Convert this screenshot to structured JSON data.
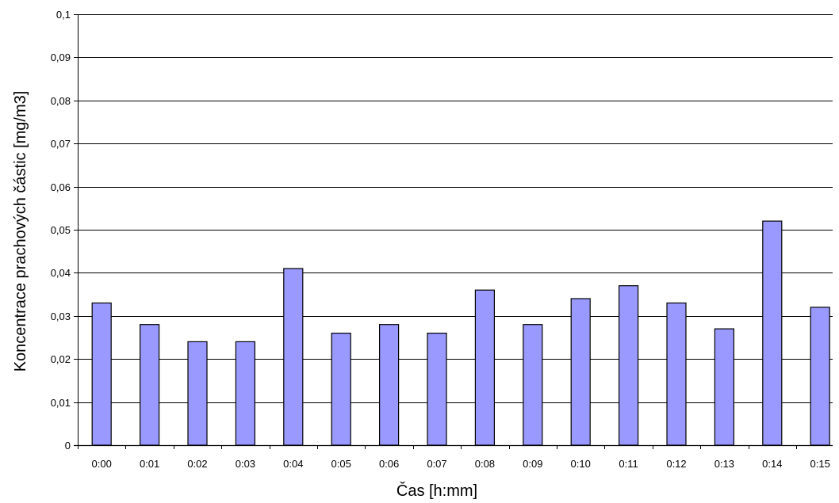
{
  "chart_data": {
    "type": "bar",
    "title": "",
    "xlabel": "Čas [h:mm]",
    "ylabel": "Koncentrace prachových částic [mg/m3]",
    "categories": [
      "0:00",
      "0:01",
      "0:02",
      "0:03",
      "0:04",
      "0:05",
      "0:06",
      "0:07",
      "0:08",
      "0:09",
      "0:10",
      "0:11",
      "0:12",
      "0:13",
      "0:14",
      "0:15"
    ],
    "values": [
      0.033,
      0.028,
      0.024,
      0.024,
      0.041,
      0.026,
      0.028,
      0.026,
      0.036,
      0.028,
      0.034,
      0.037,
      0.033,
      0.027,
      0.052,
      0.032
    ],
    "ylim": [
      0,
      0.1
    ],
    "yticks": [
      0,
      0.01,
      0.02,
      0.03,
      0.04,
      0.05,
      0.06,
      0.07,
      0.08,
      0.09,
      0.1
    ],
    "ytick_labels": [
      "0",
      "0,01",
      "0,02",
      "0,03",
      "0,04",
      "0,05",
      "0,06",
      "0,07",
      "0,08",
      "0,09",
      "0,1"
    ],
    "grid": true,
    "legend": "none",
    "colors": {
      "bar_fill": "#9999ff",
      "bar_stroke": "#000000",
      "grid": "#000000",
      "axis": "#000000",
      "text": "#000000"
    }
  }
}
